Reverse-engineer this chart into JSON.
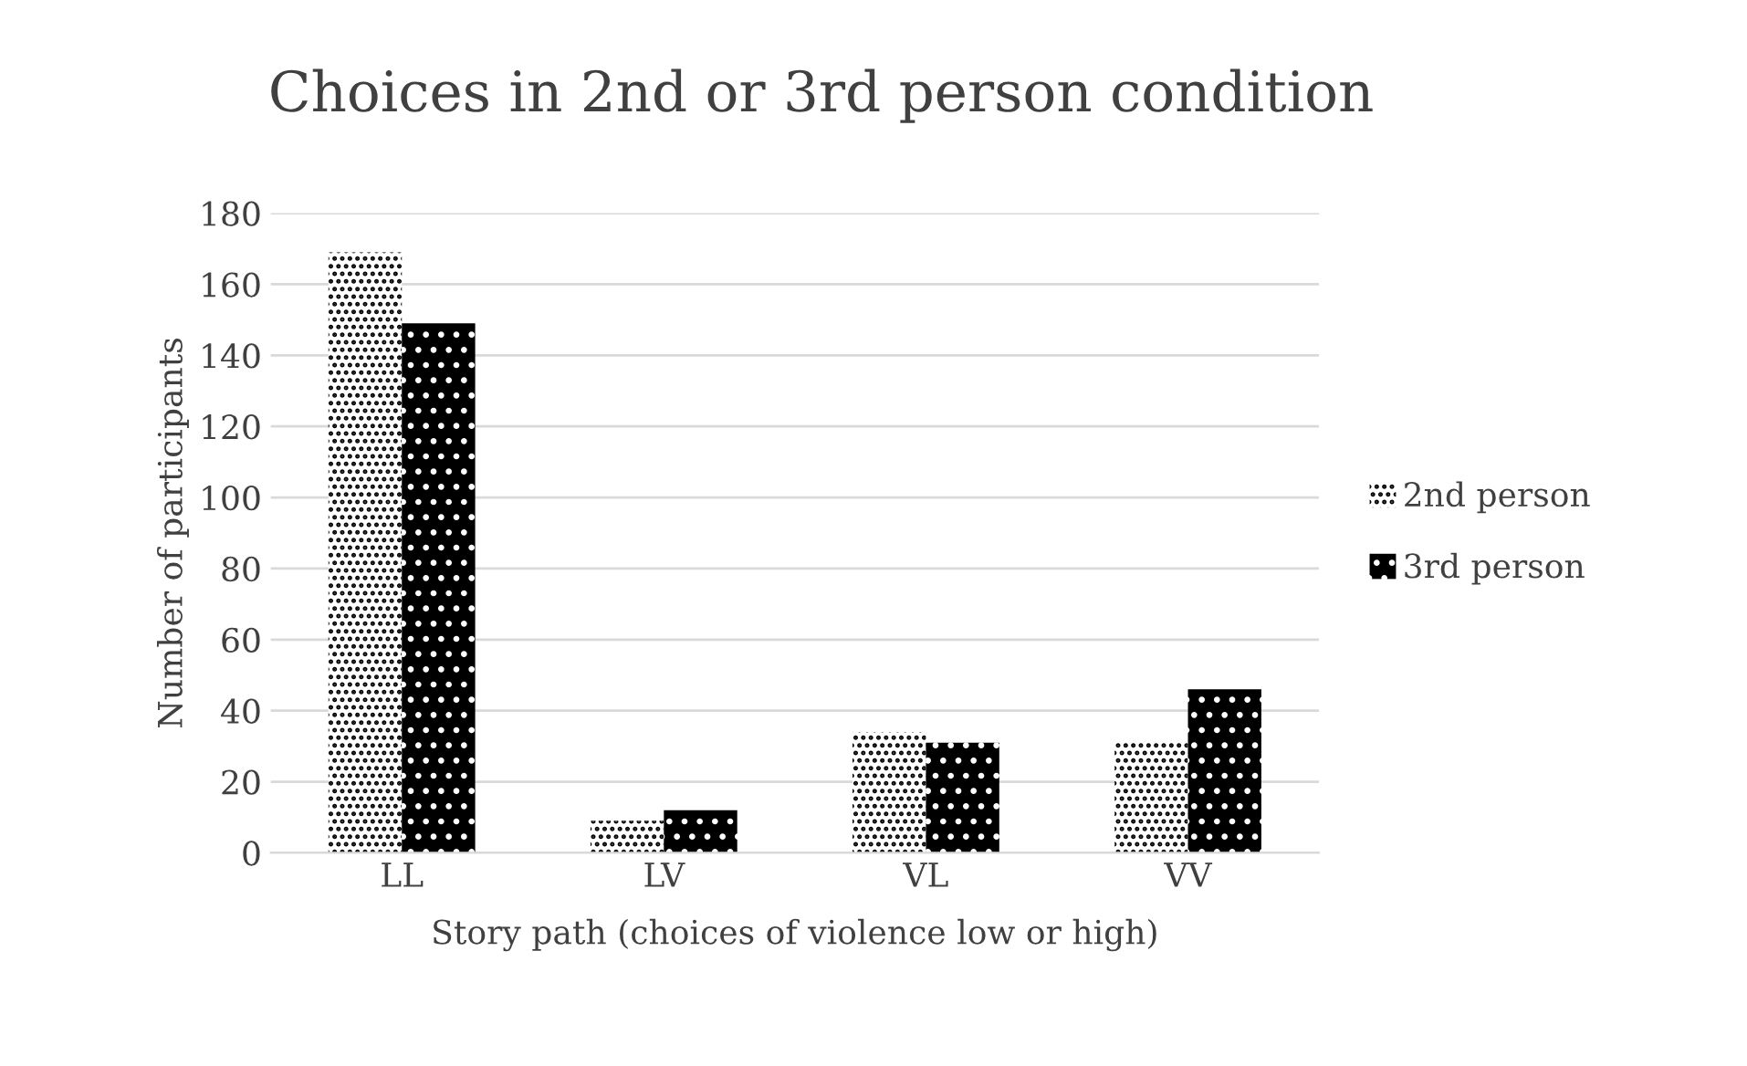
{
  "chart_data": {
    "type": "bar",
    "title": "Choices in 2nd or 3rd person condition",
    "xlabel": "Story path (choices of violence low or high)",
    "ylabel": "Number of participants",
    "categories": [
      "LL",
      "LV",
      "VL",
      "VV"
    ],
    "series": [
      {
        "name": "2nd person",
        "color": "#ffffff",
        "values": [
          169,
          9,
          34,
          31
        ]
      },
      {
        "name": "3rd person",
        "color": "#000000",
        "values": [
          149,
          12,
          31,
          46
        ]
      }
    ],
    "ylim": [
      0,
      180
    ],
    "yticks": [
      0,
      20,
      40,
      60,
      80,
      100,
      120,
      140,
      160,
      180
    ],
    "grid": "y",
    "legend": "right"
  }
}
